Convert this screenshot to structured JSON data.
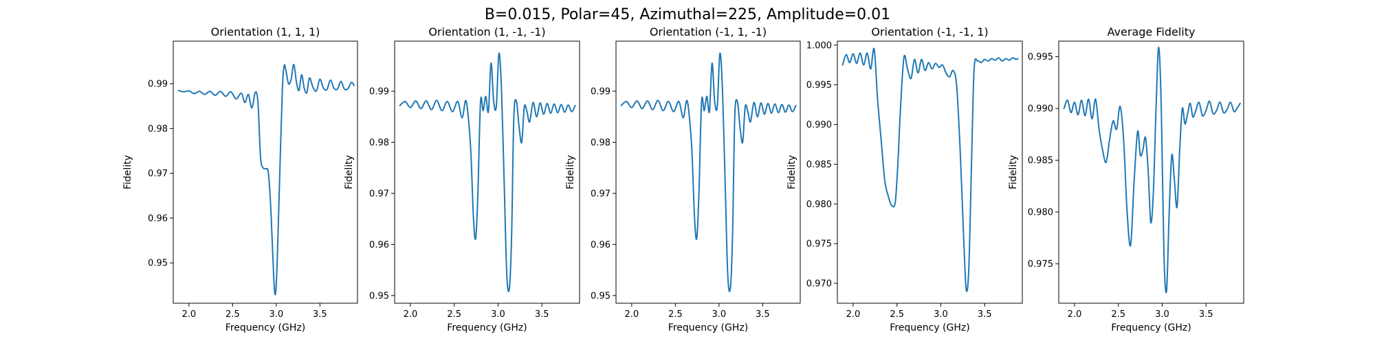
{
  "figure": {
    "suptitle": "B=0.015, Polar=45, Azimuthal=225, Amplitude=0.01"
  },
  "chart_data": [
    {
      "type": "line",
      "title": "Orientation (1, 1, 1)",
      "xlabel": "Frequency (GHz)",
      "ylabel": "Fidelity",
      "xlim": [
        1.82,
        3.93
      ],
      "ylim": [
        0.941,
        0.9995
      ],
      "xticks": [
        2.0,
        2.5,
        3.0,
        3.5
      ],
      "yticks": [
        0.95,
        0.96,
        0.97,
        0.98,
        0.99
      ],
      "xtick_labels": [
        "2.0",
        "2.5",
        "3.0",
        "3.5"
      ],
      "ytick_labels": [
        "0.95",
        "0.96",
        "0.97",
        "0.98",
        "0.99"
      ],
      "color": "#1f77b4",
      "series": [
        {
          "x": [
            1.88,
            1.94,
            2.0,
            2.06,
            2.12,
            2.18,
            2.24,
            2.3,
            2.36,
            2.42,
            2.48,
            2.54,
            2.6,
            2.64,
            2.68,
            2.72,
            2.76,
            2.79,
            2.82,
            2.85,
            2.88,
            2.91,
            2.94,
            2.97,
            2.99,
            3.01,
            3.04,
            3.07,
            3.09,
            3.11,
            3.14,
            3.17,
            3.2,
            3.23,
            3.26,
            3.29,
            3.32,
            3.35,
            3.38,
            3.42,
            3.46,
            3.5,
            3.54,
            3.58,
            3.62,
            3.66,
            3.7,
            3.74,
            3.78,
            3.82,
            3.86,
            3.89
          ],
          "y": [
            0.9885,
            0.9882,
            0.9884,
            0.9878,
            0.9883,
            0.9876,
            0.9883,
            0.9874,
            0.9883,
            0.9872,
            0.9882,
            0.9866,
            0.9879,
            0.9858,
            0.9876,
            0.9846,
            0.9881,
            0.9858,
            0.9735,
            0.9712,
            0.971,
            0.97,
            0.961,
            0.947,
            0.943,
            0.95,
            0.97,
            0.989,
            0.994,
            0.993,
            0.99,
            0.991,
            0.9943,
            0.9905,
            0.9885,
            0.992,
            0.989,
            0.988,
            0.9913,
            0.9892,
            0.9884,
            0.991,
            0.989,
            0.9887,
            0.9908,
            0.989,
            0.9888,
            0.9905,
            0.9888,
            0.9889,
            0.9903,
            0.9896
          ]
        }
      ]
    },
    {
      "type": "line",
      "title": "Orientation (1, -1, -1)",
      "xlabel": "Frequency (GHz)",
      "ylabel": "Fidelity",
      "xlim": [
        1.82,
        3.93
      ],
      "ylim": [
        0.9485,
        0.9998
      ],
      "xticks": [
        2.0,
        2.5,
        3.0,
        3.5
      ],
      "yticks": [
        0.95,
        0.96,
        0.97,
        0.98,
        0.99
      ],
      "xtick_labels": [
        "2.0",
        "2.5",
        "3.0",
        "3.5"
      ],
      "ytick_labels": [
        "0.95",
        "0.96",
        "0.97",
        "0.98",
        "0.99"
      ],
      "color": "#1f77b4",
      "series": [
        {
          "x": [
            1.88,
            1.94,
            2.0,
            2.06,
            2.12,
            2.18,
            2.24,
            2.3,
            2.36,
            2.42,
            2.48,
            2.54,
            2.59,
            2.63,
            2.66,
            2.69,
            2.72,
            2.745,
            2.77,
            2.8,
            2.83,
            2.86,
            2.89,
            2.92,
            2.95,
            2.98,
            3.01,
            3.04,
            3.07,
            3.1,
            3.13,
            3.155,
            3.18,
            3.21,
            3.24,
            3.27,
            3.3,
            3.33,
            3.36,
            3.4,
            3.44,
            3.48,
            3.52,
            3.56,
            3.6,
            3.64,
            3.68,
            3.72,
            3.76,
            3.8,
            3.84,
            3.88
          ],
          "y": [
            0.9872,
            0.988,
            0.9868,
            0.9881,
            0.9866,
            0.9881,
            0.9864,
            0.9882,
            0.9862,
            0.988,
            0.986,
            0.988,
            0.9848,
            0.9882,
            0.985,
            0.978,
            0.965,
            0.9612,
            0.97,
            0.988,
            0.9862,
            0.989,
            0.986,
            0.9955,
            0.988,
            0.987,
            0.9974,
            0.99,
            0.972,
            0.954,
            0.9515,
            0.962,
            0.985,
            0.988,
            0.983,
            0.98,
            0.987,
            0.986,
            0.984,
            0.9878,
            0.985,
            0.9877,
            0.9855,
            0.9876,
            0.9857,
            0.9875,
            0.9858,
            0.9874,
            0.9859,
            0.9873,
            0.986,
            0.9872
          ]
        }
      ]
    },
    {
      "type": "line",
      "title": "Orientation (-1, 1, -1)",
      "xlabel": "Frequency (GHz)",
      "ylabel": "Fidelity",
      "xlim": [
        1.82,
        3.93
      ],
      "ylim": [
        0.9485,
        0.9998
      ],
      "xticks": [
        2.0,
        2.5,
        3.0,
        3.5
      ],
      "yticks": [
        0.95,
        0.96,
        0.97,
        0.98,
        0.99
      ],
      "xtick_labels": [
        "2.0",
        "2.5",
        "3.0",
        "3.5"
      ],
      "ytick_labels": [
        "0.95",
        "0.96",
        "0.97",
        "0.98",
        "0.99"
      ],
      "color": "#1f77b4",
      "series": [
        {
          "x": [
            1.88,
            1.94,
            2.0,
            2.06,
            2.12,
            2.18,
            2.24,
            2.3,
            2.36,
            2.42,
            2.48,
            2.54,
            2.59,
            2.63,
            2.66,
            2.69,
            2.72,
            2.745,
            2.77,
            2.8,
            2.83,
            2.86,
            2.89,
            2.92,
            2.95,
            2.98,
            3.01,
            3.04,
            3.07,
            3.1,
            3.13,
            3.155,
            3.18,
            3.21,
            3.24,
            3.27,
            3.3,
            3.33,
            3.36,
            3.4,
            3.44,
            3.48,
            3.52,
            3.56,
            3.6,
            3.64,
            3.68,
            3.72,
            3.76,
            3.8,
            3.84,
            3.88
          ],
          "y": [
            0.9872,
            0.988,
            0.9868,
            0.9881,
            0.9866,
            0.9881,
            0.9864,
            0.9882,
            0.9862,
            0.988,
            0.986,
            0.988,
            0.9848,
            0.9882,
            0.985,
            0.978,
            0.965,
            0.9612,
            0.97,
            0.988,
            0.9862,
            0.989,
            0.986,
            0.9955,
            0.988,
            0.987,
            0.9974,
            0.99,
            0.972,
            0.954,
            0.9515,
            0.962,
            0.985,
            0.988,
            0.983,
            0.98,
            0.987,
            0.986,
            0.984,
            0.9878,
            0.985,
            0.9877,
            0.9855,
            0.9876,
            0.9857,
            0.9875,
            0.9858,
            0.9874,
            0.9859,
            0.9873,
            0.986,
            0.9872
          ]
        }
      ]
    },
    {
      "type": "line",
      "title": "Orientation (-1, -1, 1)",
      "xlabel": "Frequency (GHz)",
      "ylabel": "Fidelity",
      "xlim": [
        1.82,
        3.93
      ],
      "ylim": [
        0.9675,
        1.0005
      ],
      "xticks": [
        2.0,
        2.5,
        3.0,
        3.5
      ],
      "yticks": [
        0.97,
        0.975,
        0.98,
        0.985,
        0.99,
        0.995,
        1.0
      ],
      "xtick_labels": [
        "2.0",
        "2.5",
        "3.0",
        "3.5"
      ],
      "ytick_labels": [
        "0.970",
        "0.975",
        "0.980",
        "0.985",
        "0.990",
        "0.995",
        "1.000"
      ],
      "color": "#1f77b4",
      "series": [
        {
          "x": [
            1.88,
            1.92,
            1.96,
            2.0,
            2.04,
            2.08,
            2.12,
            2.16,
            2.2,
            2.24,
            2.28,
            2.32,
            2.36,
            2.4,
            2.44,
            2.48,
            2.51,
            2.54,
            2.58,
            2.62,
            2.66,
            2.7,
            2.74,
            2.78,
            2.82,
            2.86,
            2.9,
            2.94,
            2.98,
            3.02,
            3.06,
            3.1,
            3.14,
            3.18,
            3.22,
            3.26,
            3.29,
            3.32,
            3.35,
            3.38,
            3.42,
            3.46,
            3.5,
            3.54,
            3.58,
            3.62,
            3.66,
            3.7,
            3.74,
            3.78,
            3.82,
            3.86,
            3.88
          ],
          "y": [
            0.9975,
            0.9988,
            0.9978,
            0.9989,
            0.9977,
            0.999,
            0.9975,
            0.999,
            0.997,
            0.9995,
            0.993,
            0.988,
            0.983,
            0.981,
            0.9798,
            0.9802,
            0.985,
            0.992,
            0.9985,
            0.997,
            0.9958,
            0.9982,
            0.9965,
            0.9982,
            0.9968,
            0.9978,
            0.997,
            0.9977,
            0.9972,
            0.9975,
            0.9965,
            0.996,
            0.9968,
            0.995,
            0.987,
            0.976,
            0.9692,
            0.972,
            0.985,
            0.997,
            0.998,
            0.9978,
            0.9982,
            0.998,
            0.9983,
            0.9981,
            0.9984,
            0.998,
            0.9983,
            0.9981,
            0.9984,
            0.9982,
            0.9983
          ]
        }
      ]
    },
    {
      "type": "line",
      "title": "Average Fidelity",
      "xlabel": "Frequency (GHz)",
      "ylabel": "Fidelity",
      "xlim": [
        1.82,
        3.93
      ],
      "ylim": [
        0.9712,
        0.9965
      ],
      "xticks": [
        2.0,
        2.5,
        3.0,
        3.5
      ],
      "yticks": [
        0.975,
        0.98,
        0.985,
        0.99,
        0.995
      ],
      "xtick_labels": [
        "2.0",
        "2.5",
        "3.0",
        "3.5"
      ],
      "ytick_labels": [
        "0.975",
        "0.980",
        "0.985",
        "0.990",
        "0.995"
      ],
      "color": "#1f77b4",
      "series": [
        {
          "x": [
            1.88,
            1.92,
            1.96,
            2.0,
            2.04,
            2.08,
            2.12,
            2.16,
            2.2,
            2.24,
            2.28,
            2.32,
            2.36,
            2.4,
            2.44,
            2.48,
            2.52,
            2.56,
            2.6,
            2.64,
            2.68,
            2.72,
            2.75,
            2.78,
            2.81,
            2.84,
            2.87,
            2.9,
            2.93,
            2.96,
            2.99,
            3.02,
            3.05,
            3.08,
            3.11,
            3.14,
            3.17,
            3.2,
            3.23,
            3.26,
            3.29,
            3.32,
            3.35,
            3.38,
            3.42,
            3.46,
            3.5,
            3.54,
            3.58,
            3.62,
            3.66,
            3.7,
            3.74,
            3.78,
            3.82,
            3.86,
            3.89
          ],
          "y": [
            0.99,
            0.9908,
            0.9896,
            0.9906,
            0.9894,
            0.9908,
            0.9893,
            0.9909,
            0.989,
            0.9909,
            0.988,
            0.986,
            0.9848,
            0.987,
            0.9888,
            0.988,
            0.9902,
            0.987,
            0.98,
            0.9768,
            0.983,
            0.9878,
            0.9855,
            0.986,
            0.9872,
            0.984,
            0.979,
            0.982,
            0.99,
            0.9959,
            0.99,
            0.976,
            0.9724,
            0.98,
            0.9855,
            0.983,
            0.9805,
            0.986,
            0.99,
            0.9885,
            0.9895,
            0.9905,
            0.9892,
            0.9897,
            0.9906,
            0.9893,
            0.9898,
            0.9907,
            0.9895,
            0.9898,
            0.9906,
            0.9896,
            0.9899,
            0.9906,
            0.9897,
            0.9901,
            0.9905
          ]
        }
      ]
    }
  ]
}
